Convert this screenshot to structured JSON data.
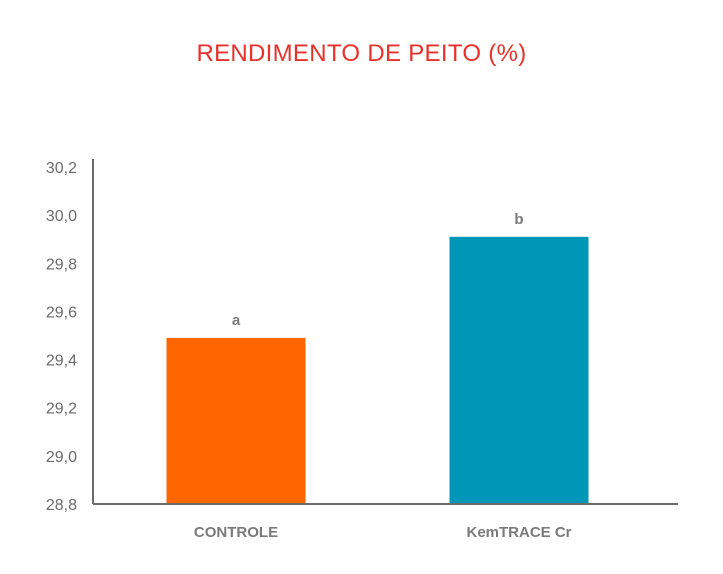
{
  "chart_data": {
    "type": "bar",
    "title": "RENDIMENTO DE PEITO (%)",
    "categories": [
      "CONTROLE",
      "KemTRACE Cr"
    ],
    "values": [
      29.49,
      29.91
    ],
    "data_labels": [
      "a",
      "b"
    ],
    "colors": [
      "#ff6600",
      "#0096b8"
    ],
    "xlabel": "",
    "ylabel": "",
    "ylim": [
      28.8,
      30.2
    ],
    "yticks": [
      28.8,
      29.0,
      29.2,
      29.4,
      29.6,
      29.8,
      30.0,
      30.2
    ],
    "ytick_labels": [
      "28,8",
      "29,0",
      "29,2",
      "29,4",
      "29,6",
      "29,8",
      "30,0",
      "30,2"
    ],
    "grid": false,
    "legend": "none"
  }
}
